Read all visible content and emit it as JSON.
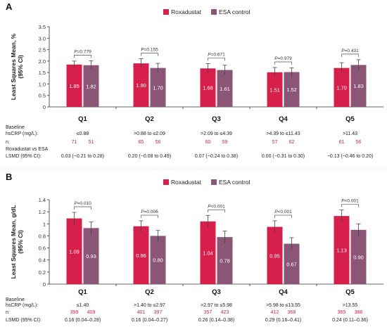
{
  "colors": {
    "roxadustat": "#d71f4b",
    "esa": "#8b5676",
    "axis": "#333333",
    "n_text": "#d71f4b",
    "bracket": "#555555"
  },
  "chart_data": [
    {
      "panel": "A",
      "type": "bar",
      "ylabel": "Least Squares Mean, %\n(95% CI)",
      "ylim": [
        0,
        3.5
      ],
      "yticks": [
        "0",
        "0.5",
        "1.0",
        "1.5",
        "2.0",
        "2.5",
        "3.0",
        "3.5"
      ],
      "categories": [
        "Q1",
        "Q2",
        "Q3",
        "Q4",
        "Q5"
      ],
      "legend": [
        "Roxadustat",
        "ESA control"
      ],
      "legend_position": "top",
      "series": [
        {
          "name": "Roxadustat",
          "values": [
            1.85,
            1.9,
            1.68,
            1.51,
            1.7
          ],
          "ci_low": [
            1.7,
            1.7,
            1.47,
            1.31,
            1.49
          ],
          "ci_high": [
            2.0,
            2.1,
            1.89,
            1.72,
            1.93
          ]
        },
        {
          "name": "ESA control",
          "values": [
            1.82,
            1.7,
            1.61,
            1.52,
            1.83
          ],
          "ci_low": [
            1.63,
            1.5,
            1.4,
            1.33,
            1.6
          ],
          "ci_high": [
            2.01,
            1.9,
            1.82,
            1.71,
            2.06
          ]
        }
      ],
      "pvalues": [
        "P=0.779",
        "P=0.155",
        "P=0.671",
        "P=0.979",
        "P=0.431"
      ],
      "baseline_label": "Baseline\nhsCRP (mg/L):",
      "baseline": [
        "≤0.88",
        ">0.88 to ≤2.09",
        ">2.09 to ≤4.39",
        ">4.39 to ≤11.43",
        ">11.43"
      ],
      "n_label": "n:",
      "n_rox": [
        "71",
        "65",
        "60",
        "57",
        "61"
      ],
      "n_esa": [
        "51",
        "56",
        "59",
        "62",
        "56"
      ],
      "lsmd_label": "Roxadustat vs ESA\nLSMD (95% CI):",
      "lsmd": [
        "0.03 (−0.21 to 0.28)",
        "0.20 (−0.08 to 0.49)",
        "0.07 (−0.24 to 0.38)",
        "0.00 (−0.31 to 0.30)",
        "−0.13 (−0.46 to 0.20)"
      ]
    },
    {
      "panel": "B",
      "type": "bar",
      "ylabel": "Least Squares Mean, g/dL\n(95% CI)",
      "ylim": [
        0,
        1.4
      ],
      "yticks": [
        "0",
        "0.2",
        "0.4",
        "0.6",
        "0.8",
        "1",
        "1.2",
        "1.4"
      ],
      "categories": [
        "Q1",
        "Q2",
        "Q3",
        "Q4",
        "Q5"
      ],
      "legend": [
        "Roxadustat",
        "ESA control"
      ],
      "legend_position": "top",
      "series": [
        {
          "name": "Roxadustat",
          "values": [
            1.09,
            0.96,
            1.04,
            0.95,
            1.13
          ],
          "ci_low": [
            0.99,
            0.87,
            0.94,
            0.85,
            1.03
          ],
          "ci_high": [
            1.19,
            1.05,
            1.14,
            1.05,
            1.23
          ]
        },
        {
          "name": "ESA control",
          "values": [
            0.93,
            0.8,
            0.78,
            0.67,
            0.9
          ],
          "ci_low": [
            0.83,
            0.71,
            0.68,
            0.57,
            0.8
          ],
          "ci_high": [
            1.03,
            0.89,
            0.88,
            0.77,
            1.0
          ]
        }
      ],
      "pvalues": [
        "P=0.010",
        "P=0.006",
        "P<0.001",
        "P<0.001",
        "P<0.001"
      ],
      "baseline_label": "Baseline\nhsCRP (mg/L):",
      "baseline": [
        "≤1.40",
        ">1.40 to ≤2.97",
        ">2.97 to ≤5.98",
        ">5.98 to ≤13.55",
        ">13.55"
      ],
      "n_label": "n:",
      "n_rox": [
        "399",
        "401",
        "357",
        "412",
        "365"
      ],
      "n_esa": [
        "409",
        "397",
        "423",
        "368",
        "386"
      ],
      "lsmd_label": "LSMD (95% CI):",
      "lsmd": [
        "0.16 (0.04–0.28)",
        "0.16 (0.04–0.27)",
        "0.26 (0.14–0.38)",
        "0.29 (0.16–0.41)",
        "0.24 (0.11–0.36)"
      ]
    }
  ]
}
